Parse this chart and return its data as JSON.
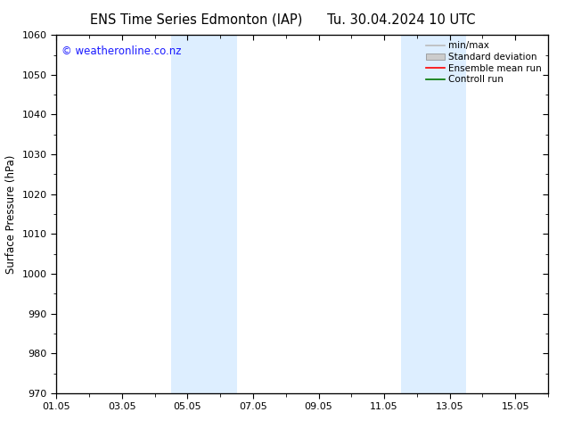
{
  "title_left": "ENS Time Series Edmonton (IAP)",
  "title_right": "Tu. 30.04.2024 10 UTC",
  "ylabel": "Surface Pressure (hPa)",
  "ylim": [
    970,
    1060
  ],
  "yticks": [
    970,
    980,
    990,
    1000,
    1010,
    1020,
    1030,
    1040,
    1050,
    1060
  ],
  "xlim_start": 0,
  "xlim_end": 15,
  "xtick_labels": [
    "01.05",
    "03.05",
    "05.05",
    "07.05",
    "09.05",
    "11.05",
    "13.05",
    "15.05"
  ],
  "xtick_positions": [
    0,
    2,
    4,
    6,
    8,
    10,
    12,
    14
  ],
  "shaded_bands": [
    {
      "x_start": 3.5,
      "x_end": 4.5
    },
    {
      "x_start": 4.5,
      "x_end": 5.5
    },
    {
      "x_start": 10.5,
      "x_end": 11.5
    },
    {
      "x_start": 11.5,
      "x_end": 12.5
    }
  ],
  "band_color": "#ddeeff",
  "background_color": "#ffffff",
  "watermark_text": "© weatheronline.co.nz",
  "watermark_color": "#1a1aff",
  "legend_entries": [
    {
      "label": "min/max",
      "color": "#bbbbbb",
      "type": "line"
    },
    {
      "label": "Standard deviation",
      "color": "#cccccc",
      "type": "box"
    },
    {
      "label": "Ensemble mean run",
      "color": "#ff0000",
      "type": "line"
    },
    {
      "label": "Controll run",
      "color": "#007700",
      "type": "line"
    }
  ],
  "title_fontsize": 10.5,
  "axis_fontsize": 8.5,
  "tick_fontsize": 8,
  "legend_fontsize": 7.5,
  "watermark_fontsize": 8.5
}
